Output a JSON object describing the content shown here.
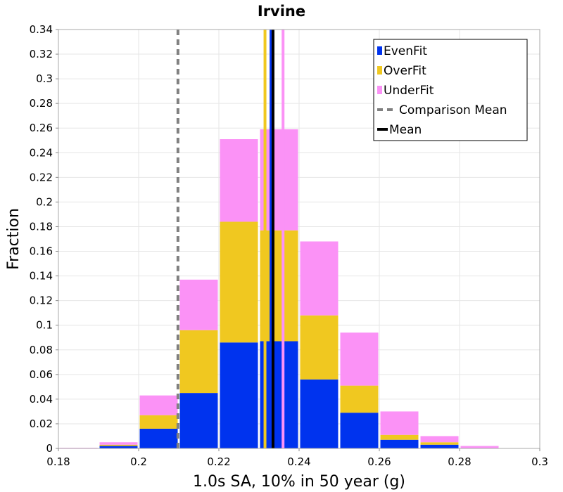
{
  "chart_data": {
    "type": "bar",
    "stacked": true,
    "title": "Irvine",
    "xlabel": "1.0s SA, 10% in 50 year (g)",
    "ylabel": "Fraction",
    "xlim": [
      0.18,
      0.3
    ],
    "ylim": [
      0,
      0.34
    ],
    "grid": true,
    "legend_position": "top-right",
    "x_ticks": [
      "0.18",
      "0.2",
      "0.22",
      "0.24",
      "0.26",
      "0.28",
      "0.3"
    ],
    "y_ticks": [
      "0",
      "0.02",
      "0.04",
      "0.06",
      "0.08",
      "0.1",
      "0.12",
      "0.14",
      "0.16",
      "0.18",
      "0.2",
      "0.22",
      "0.24",
      "0.26",
      "0.28",
      "0.3",
      "0.32",
      "0.34"
    ],
    "bin_width": 0.01,
    "bin_centers": [
      0.185,
      0.195,
      0.205,
      0.215,
      0.225,
      0.235,
      0.245,
      0.255,
      0.265,
      0.275,
      0.285,
      0.295
    ],
    "series": [
      {
        "name": "EvenFit",
        "color": "#0033ee",
        "values": [
          0.0,
          0.002,
          0.016,
          0.045,
          0.086,
          0.087,
          0.056,
          0.029,
          0.007,
          0.003,
          0.0,
          0.0
        ]
      },
      {
        "name": "OverFit",
        "color": "#f0c820",
        "values": [
          0.0,
          0.001,
          0.011,
          0.051,
          0.098,
          0.09,
          0.052,
          0.022,
          0.004,
          0.002,
          0.0,
          0.0
        ]
      },
      {
        "name": "UnderFit",
        "color": "#fb92f6",
        "values": [
          0.0005,
          0.002,
          0.016,
          0.041,
          0.067,
          0.082,
          0.06,
          0.043,
          0.019,
          0.005,
          0.002,
          0.0
        ]
      }
    ],
    "vertical_lines": [
      {
        "name": "Comparison Mean",
        "x": 0.2098,
        "color": "#808080",
        "dashed": true
      },
      {
        "name": "OverFit mean",
        "x": 0.2315,
        "color": "#f0c820",
        "dashed": false
      },
      {
        "name": "EvenFit mean",
        "x": 0.233,
        "color": "#0033ee",
        "dashed": false
      },
      {
        "name": "UnderFit mean",
        "x": 0.236,
        "color": "#fb92f6",
        "dashed": false
      },
      {
        "name": "Mean",
        "x": 0.2335,
        "color": "#000000",
        "dashed": false
      }
    ],
    "legend": [
      {
        "label": "EvenFit",
        "kind": "box",
        "color": "#0033ee"
      },
      {
        "label": "OverFit",
        "kind": "box",
        "color": "#f0c820"
      },
      {
        "label": "UnderFit",
        "kind": "box",
        "color": "#fb92f6"
      },
      {
        "label": "Comparison Mean",
        "kind": "dashed-line",
        "color": "#808080"
      },
      {
        "label": "Mean",
        "kind": "line",
        "color": "#000000"
      }
    ]
  }
}
